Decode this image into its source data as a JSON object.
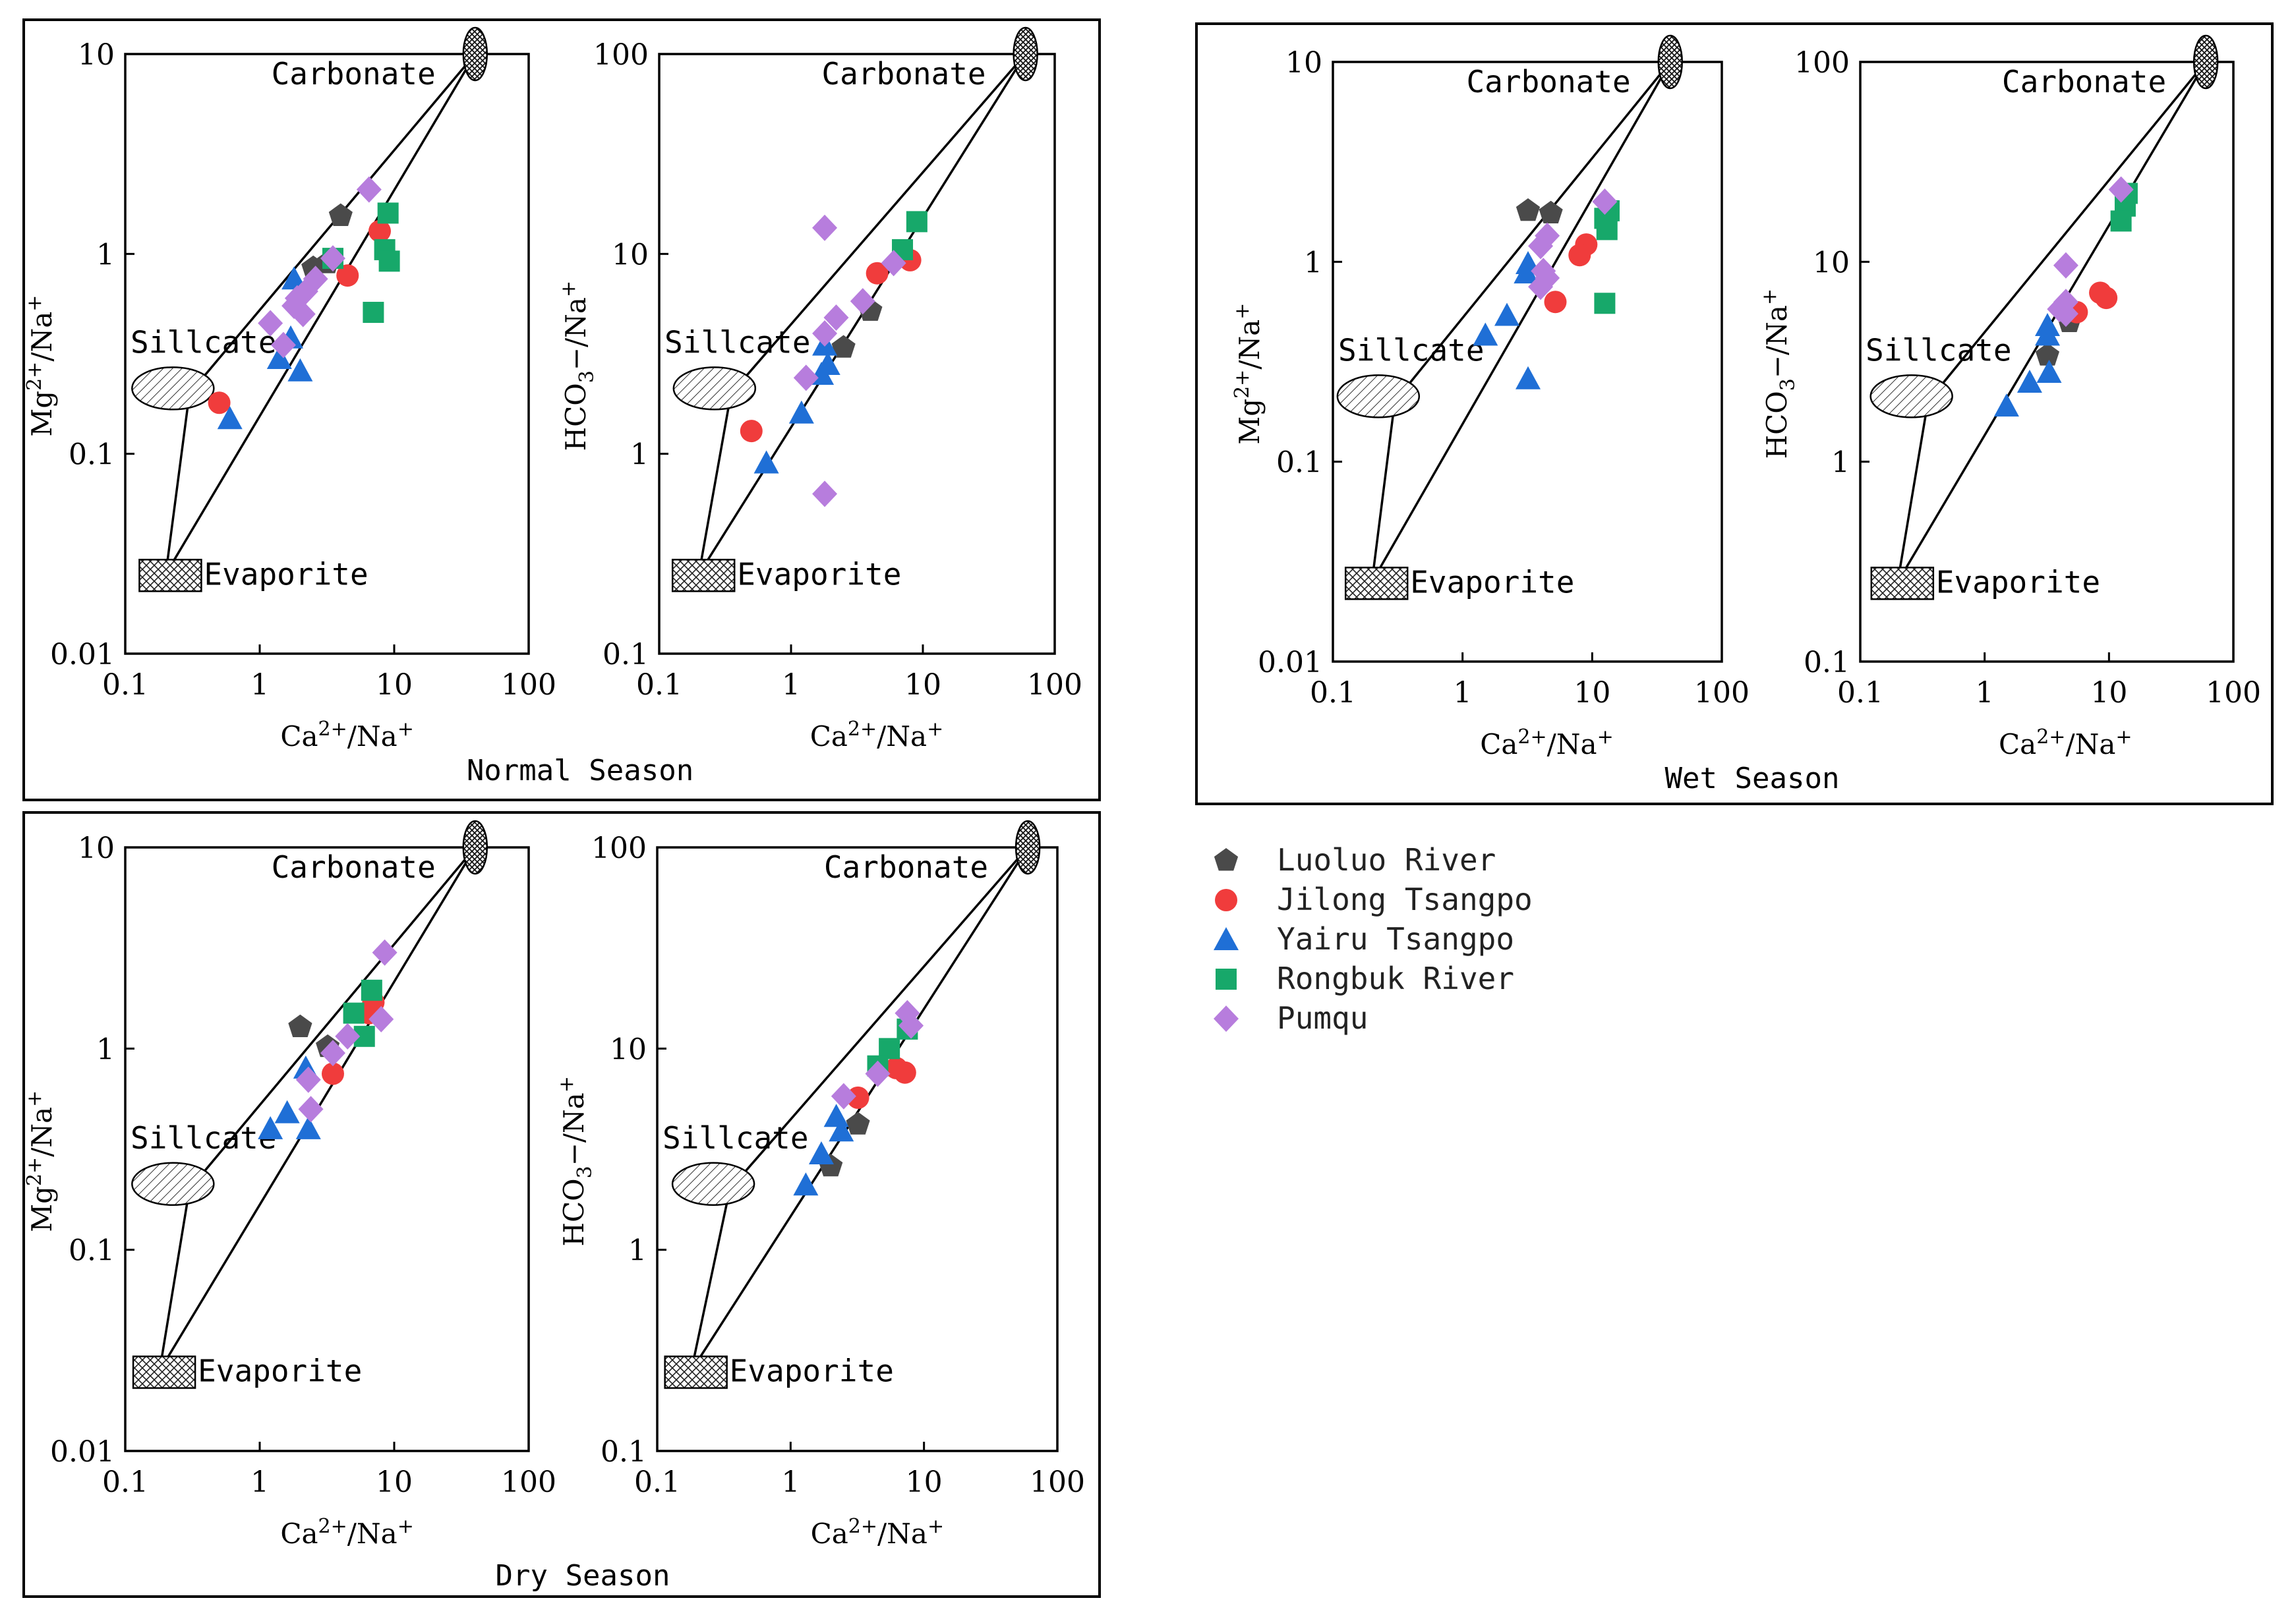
{
  "regions": {
    "carbonate": "Carbonate",
    "silicate": "Sillcate",
    "evaporite": "Evaporite"
  },
  "legend": [
    {
      "name": "Luoluo River",
      "color": "#4a4a4a",
      "shape": "pentagon"
    },
    {
      "name": "Jilong Tsangpo",
      "color": "#f03c3c",
      "shape": "circle"
    },
    {
      "name": "Yairu Tsangpo",
      "color": "#1f6fd6",
      "shape": "triangle"
    },
    {
      "name": "Rongbuk River",
      "color": "#17a86a",
      "shape": "square"
    },
    {
      "name": "Pumqu",
      "color": "#b77ddd",
      "shape": "diamond"
    }
  ],
  "panels": [
    {
      "season": "Normal Season"
    },
    {
      "season": "Wet Season"
    },
    {
      "season": "Dry Season"
    }
  ],
  "chart_data": [
    {
      "type": "scatter",
      "panel": 0,
      "xscale": "log",
      "yscale": "log",
      "xlabel": "Ca2+/Na+",
      "ylabel": "Mg2+/Na+",
      "xlim": [
        0.1,
        100
      ],
      "ylim": [
        0.01,
        10
      ],
      "xticks": [
        "0.1",
        "1",
        "10",
        "100"
      ],
      "yticks": [
        "0.01",
        "0.1",
        "1",
        "10"
      ],
      "mixing_lines": {
        "evaporite": [
          0.2,
          0.025
        ],
        "silicate": [
          0.3,
          0.2
        ],
        "carbonate": [
          40,
          10
        ]
      },
      "series": [
        {
          "name": "Luoluo River",
          "points": [
            [
              4,
              1.55
            ],
            [
              2.5,
              0.85
            ],
            [
              3.2,
              0.9
            ]
          ]
        },
        {
          "name": "Jilong Tsangpo",
          "points": [
            [
              7.8,
              1.3
            ],
            [
              4.5,
              0.78
            ],
            [
              0.5,
              0.18
            ]
          ]
        },
        {
          "name": "Yairu Tsangpo",
          "points": [
            [
              1.8,
              0.75
            ],
            [
              1.7,
              0.38
            ],
            [
              1.4,
              0.3
            ],
            [
              2.0,
              0.26
            ],
            [
              0.6,
              0.15
            ]
          ]
        },
        {
          "name": "Rongbuk River",
          "points": [
            [
              9,
              1.6
            ],
            [
              8.5,
              1.05
            ],
            [
              9.2,
              0.92
            ],
            [
              7,
              0.51
            ],
            [
              3.5,
              0.95
            ]
          ]
        },
        {
          "name": "Pumqu",
          "points": [
            [
              6.5,
              2.1
            ],
            [
              3.5,
              0.95
            ],
            [
              2.6,
              0.75
            ],
            [
              2.2,
              0.65
            ],
            [
              1.9,
              0.6
            ],
            [
              1.8,
              0.55
            ],
            [
              2.1,
              0.5
            ],
            [
              1.2,
              0.45
            ],
            [
              1.5,
              0.35
            ]
          ]
        }
      ]
    },
    {
      "type": "scatter",
      "panel": 0,
      "xscale": "log",
      "yscale": "log",
      "xlabel": "Ca2+/Na+",
      "ylabel": "HCO3-/Na+",
      "xlim": [
        0.1,
        100
      ],
      "ylim": [
        0.1,
        100
      ],
      "xticks": [
        "0.1",
        "1",
        "10",
        "100"
      ],
      "yticks": [
        "0.1",
        "1",
        "10",
        "100"
      ],
      "mixing_lines": {
        "evaporite": [
          0.2,
          0.25
        ],
        "silicate": [
          0.35,
          2
        ],
        "carbonate": [
          60,
          100
        ]
      },
      "series": [
        {
          "name": "Luoluo River",
          "points": [
            [
              4,
              5.2
            ],
            [
              2.5,
              3.4
            ]
          ]
        },
        {
          "name": "Jilong Tsangpo",
          "points": [
            [
              8,
              9.3
            ],
            [
              4.5,
              8
            ],
            [
              0.5,
              1.3
            ]
          ]
        },
        {
          "name": "Yairu Tsangpo",
          "points": [
            [
              1.8,
              3.5
            ],
            [
              1.9,
              2.8
            ],
            [
              1.7,
              2.5
            ],
            [
              1.2,
              1.6
            ],
            [
              0.65,
              0.9
            ]
          ]
        },
        {
          "name": "Rongbuk River",
          "points": [
            [
              9,
              14.5
            ],
            [
              7,
              10.5
            ]
          ]
        },
        {
          "name": "Pumqu",
          "points": [
            [
              1.8,
              13.5
            ],
            [
              3.5,
              5.8
            ],
            [
              2.2,
              4.8
            ],
            [
              1.8,
              4
            ],
            [
              1.3,
              2.4
            ],
            [
              6,
              9
            ],
            [
              1.8,
              0.63
            ]
          ]
        }
      ]
    },
    {
      "type": "scatter",
      "panel": 1,
      "xscale": "log",
      "yscale": "log",
      "xlabel": "Ca2+/Na+",
      "ylabel": "Mg2+/Na+",
      "xlim": [
        0.1,
        100
      ],
      "ylim": [
        0.01,
        10
      ],
      "xticks": [
        "0.1",
        "1",
        "10",
        "100"
      ],
      "yticks": [
        "0.01",
        "0.1",
        "1",
        "10"
      ],
      "mixing_lines": {
        "evaporite": [
          0.2,
          0.025
        ],
        "silicate": [
          0.3,
          0.2
        ],
        "carbonate": [
          40,
          10
        ]
      },
      "series": [
        {
          "name": "Luoluo River",
          "points": [
            [
              3.2,
              1.8
            ],
            [
              4.8,
              1.75
            ]
          ]
        },
        {
          "name": "Jilong Tsangpo",
          "points": [
            [
              9,
              1.22
            ],
            [
              8,
              1.08
            ],
            [
              5.2,
              0.63
            ]
          ]
        },
        {
          "name": "Yairu Tsangpo",
          "points": [
            [
              3.2,
              0.98
            ],
            [
              3.1,
              0.88
            ],
            [
              2.2,
              0.54
            ],
            [
              1.5,
              0.43
            ],
            [
              3.2,
              0.26
            ]
          ]
        },
        {
          "name": "Rongbuk River",
          "points": [
            [
              13.5,
              1.8
            ],
            [
              12.5,
              1.65
            ],
            [
              13,
              1.45
            ],
            [
              12.5,
              0.62
            ]
          ]
        },
        {
          "name": "Pumqu",
          "points": [
            [
              12.5,
              2.0
            ],
            [
              4.5,
              1.35
            ],
            [
              4.0,
              1.2
            ],
            [
              4.2,
              0.9
            ],
            [
              4.5,
              0.83
            ],
            [
              4.0,
              0.75
            ]
          ]
        }
      ]
    },
    {
      "type": "scatter",
      "panel": 1,
      "xscale": "log",
      "yscale": "log",
      "xlabel": "Ca2+/Na+",
      "ylabel": "HCO3-/Na+",
      "xlim": [
        0.1,
        100
      ],
      "ylim": [
        0.1,
        100
      ],
      "xticks": [
        "0.1",
        "1",
        "10",
        "100"
      ],
      "yticks": [
        "0.1",
        "1",
        "10",
        "100"
      ],
      "mixing_lines": {
        "evaporite": [
          0.2,
          0.25
        ],
        "silicate": [
          0.35,
          2
        ],
        "carbonate": [
          60,
          100
        ]
      },
      "series": [
        {
          "name": "Luoluo River",
          "points": [
            [
              3.2,
              3.4
            ],
            [
              4.8,
              5.0
            ]
          ]
        },
        {
          "name": "Jilong Tsangpo",
          "points": [
            [
              8.5,
              7.0
            ],
            [
              9.5,
              6.6
            ],
            [
              5.5,
              5.6
            ]
          ]
        },
        {
          "name": "Yairu Tsangpo",
          "points": [
            [
              3.2,
              4.8
            ],
            [
              3.2,
              4.3
            ],
            [
              3.3,
              2.8
            ],
            [
              2.3,
              2.5
            ],
            [
              1.5,
              1.9
            ]
          ]
        },
        {
          "name": "Rongbuk River",
          "points": [
            [
              14,
              22
            ],
            [
              13.5,
              19
            ],
            [
              12.5,
              16
            ]
          ]
        },
        {
          "name": "Pumqu",
          "points": [
            [
              12.5,
              23
            ],
            [
              4.5,
              9.6
            ],
            [
              4.5,
              6.3
            ],
            [
              4.0,
              5.8
            ],
            [
              4.5,
              5.5
            ]
          ]
        }
      ]
    },
    {
      "type": "scatter",
      "panel": 2,
      "xscale": "log",
      "yscale": "log",
      "xlabel": "Ca2+/Na+",
      "ylabel": "Mg2+/Na+",
      "xlim": [
        0.1,
        100
      ],
      "ylim": [
        0.01,
        10
      ],
      "xticks": [
        "0.1",
        "1",
        "10",
        "100"
      ],
      "yticks": [
        "0.01",
        "0.1",
        "1",
        "10"
      ],
      "mixing_lines": {
        "evaporite": [
          0.18,
          0.025
        ],
        "silicate": [
          0.3,
          0.2
        ],
        "carbonate": [
          40,
          10
        ]
      },
      "series": [
        {
          "name": "Luoluo River",
          "points": [
            [
              2.0,
              1.28
            ],
            [
              3.2,
              1.02
            ]
          ]
        },
        {
          "name": "Jilong Tsangpo",
          "points": [
            [
              7.0,
              1.7
            ],
            [
              6.5,
              1.5
            ],
            [
              3.5,
              0.75
            ]
          ]
        },
        {
          "name": "Yairu Tsangpo",
          "points": [
            [
              2.2,
              0.8
            ],
            [
              1.6,
              0.48
            ],
            [
              1.2,
              0.4
            ],
            [
              2.3,
              0.4
            ]
          ]
        },
        {
          "name": "Rongbuk River",
          "points": [
            [
              6.8,
              1.95
            ],
            [
              5.0,
              1.5
            ],
            [
              6.0,
              1.15
            ]
          ]
        },
        {
          "name": "Pumqu",
          "points": [
            [
              8.5,
              3.0
            ],
            [
              8.0,
              1.4
            ],
            [
              4.5,
              1.15
            ],
            [
              3.5,
              0.95
            ],
            [
              2.3,
              0.7
            ],
            [
              2.4,
              0.5
            ]
          ]
        }
      ]
    },
    {
      "type": "scatter",
      "panel": 2,
      "xscale": "log",
      "yscale": "log",
      "xlabel": "Ca2+/Na+",
      "ylabel": "HCO3-/Na+",
      "xlim": [
        0.1,
        100
      ],
      "ylim": [
        0.1,
        100
      ],
      "xticks": [
        "0.1",
        "1",
        "10",
        "100"
      ],
      "yticks": [
        "0.1",
        "1",
        "10",
        "100"
      ],
      "mixing_lines": {
        "evaporite": [
          0.18,
          0.25
        ],
        "silicate": [
          0.35,
          2
        ],
        "carbonate": [
          60,
          100
        ]
      },
      "series": [
        {
          "name": "Luoluo River",
          "points": [
            [
              3.2,
              4.2
            ],
            [
              2.0,
              2.6
            ]
          ]
        },
        {
          "name": "Jilong Tsangpo",
          "points": [
            [
              7.2,
              7.6
            ],
            [
              6.2,
              8.0
            ],
            [
              3.2,
              5.7
            ]
          ]
        },
        {
          "name": "Yairu Tsangpo",
          "points": [
            [
              2.2,
              4.6
            ],
            [
              2.4,
              3.9
            ],
            [
              1.7,
              3.0
            ],
            [
              1.3,
              2.1
            ]
          ]
        },
        {
          "name": "Rongbuk River",
          "points": [
            [
              7.5,
              12.5
            ],
            [
              5.5,
              10.0
            ],
            [
              4.5,
              8.2
            ]
          ]
        },
        {
          "name": "Pumqu",
          "points": [
            [
              7.5,
              15.0
            ],
            [
              8.0,
              13.0
            ],
            [
              4.5,
              7.5
            ],
            [
              2.5,
              5.8
            ]
          ]
        }
      ]
    }
  ]
}
